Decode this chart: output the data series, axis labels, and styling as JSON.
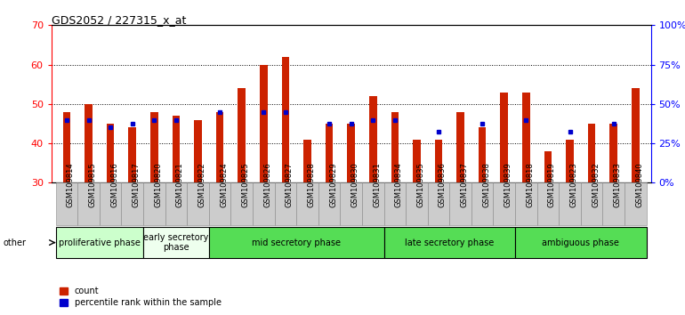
{
  "title": "GDS2052 / 227315_x_at",
  "samples": [
    "GSM109814",
    "GSM109815",
    "GSM109816",
    "GSM109817",
    "GSM109820",
    "GSM109821",
    "GSM109822",
    "GSM109824",
    "GSM109825",
    "GSM109826",
    "GSM109827",
    "GSM109828",
    "GSM109829",
    "GSM109830",
    "GSM109831",
    "GSM109834",
    "GSM109835",
    "GSM109836",
    "GSM109837",
    "GSM109838",
    "GSM109839",
    "GSM109818",
    "GSM109819",
    "GSM109823",
    "GSM109832",
    "GSM109833",
    "GSM109840"
  ],
  "counts": [
    48,
    50,
    45,
    44,
    48,
    47,
    46,
    48,
    54,
    60,
    62,
    41,
    45,
    45,
    52,
    48,
    41,
    41,
    48,
    44,
    53,
    53,
    38,
    41,
    45,
    45,
    54
  ],
  "percentile_ranks": [
    46,
    46,
    44,
    45,
    46,
    46,
    null,
    48,
    null,
    48,
    48,
    null,
    45,
    45,
    46,
    46,
    null,
    43,
    null,
    45,
    null,
    46,
    null,
    43,
    null,
    45,
    null
  ],
  "phases": [
    {
      "name": "proliferative phase",
      "start": 0,
      "end": 4,
      "color": "#ccffcc"
    },
    {
      "name": "early secretory\nphase",
      "start": 4,
      "end": 7,
      "color": "#eeffee"
    },
    {
      "name": "mid secretory phase",
      "start": 7,
      "end": 15,
      "color": "#55dd55"
    },
    {
      "name": "late secretory phase",
      "start": 15,
      "end": 21,
      "color": "#55dd55"
    },
    {
      "name": "ambiguous phase",
      "start": 21,
      "end": 27,
      "color": "#55dd55"
    }
  ],
  "ylim": [
    30,
    70
  ],
  "yticks_left": [
    30,
    40,
    50,
    60,
    70
  ],
  "yticks_right_vals": [
    0,
    25,
    50,
    75,
    100
  ],
  "yticks_right_pos": [
    30,
    40,
    50,
    60,
    70
  ],
  "bar_color": "#cc2200",
  "dot_color": "#0000cc",
  "tick_bg_color": "#cccccc",
  "plot_bg": "#ffffff"
}
